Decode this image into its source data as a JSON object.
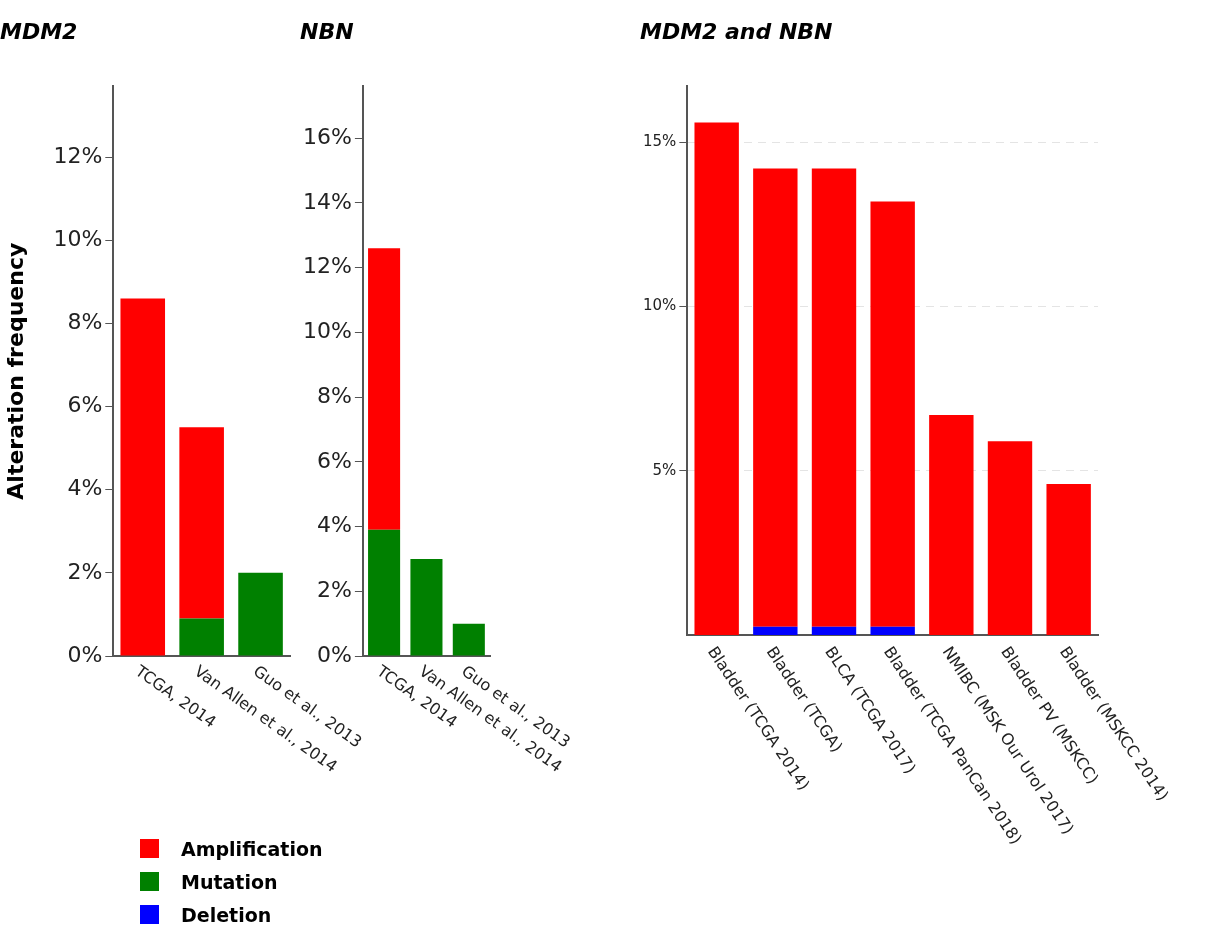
{
  "chart_data": [
    {
      "type": "bar",
      "title": "MDM2",
      "ylabel": "Alteration frequency",
      "categories": [
        "TCGA, 2014",
        "Van Allen et al., 2014",
        "Guo et al., 2013"
      ],
      "stacked": true,
      "grid": false,
      "legend": "bottom",
      "series": [
        {
          "name": "Mutation",
          "color": "#008000",
          "values": [
            null,
            0.9,
            2.0
          ]
        },
        {
          "name": "Amplification",
          "color": "#ff0000",
          "values": [
            8.6,
            4.6,
            null
          ]
        }
      ],
      "ylim": [
        0,
        13.7
      ],
      "yticks": [
        {
          "value": 0,
          "label": "0%"
        },
        {
          "value": 2,
          "label": "2%"
        },
        {
          "value": 4,
          "label": "4%"
        },
        {
          "value": 6,
          "label": "6%"
        },
        {
          "value": 8,
          "label": "8%"
        },
        {
          "value": 10,
          "label": "10%"
        },
        {
          "value": 12,
          "label": "12%"
        }
      ]
    },
    {
      "type": "bar",
      "title": "NBN",
      "categories": [
        "TCGA, 2014",
        "Van Allen et al., 2014",
        "Guo et al., 2013"
      ],
      "stacked": true,
      "grid": false,
      "series": [
        {
          "name": "Mutation",
          "color": "#008000",
          "values": [
            3.9,
            3.0,
            1.0
          ]
        },
        {
          "name": "Amplification",
          "color": "#ff0000",
          "values": [
            8.7,
            null,
            null
          ]
        }
      ],
      "ylim": [
        0,
        17.6
      ],
      "yticks": [
        {
          "value": 0,
          "label": "0%"
        },
        {
          "value": 2,
          "label": "2%"
        },
        {
          "value": 4,
          "label": "4%"
        },
        {
          "value": 6,
          "label": "6%"
        },
        {
          "value": 8,
          "label": "8%"
        },
        {
          "value": 10,
          "label": "10%"
        },
        {
          "value": 12,
          "label": "12%"
        },
        {
          "value": 14,
          "label": "14%"
        },
        {
          "value": 16,
          "label": "16%"
        }
      ]
    },
    {
      "type": "bar",
      "title": "MDM2 and NBN",
      "categories": [
        "Bladder (TCGA 2014)",
        "Bladder (TCGA)",
        "BLCA (TCGA 2017)",
        "Bladder (TCGA PanCan 2018)",
        "NMIBC (MSK Our Urol 2017)",
        "Bladder PV (MSKCC)",
        "Bladder (MSKCC 2014)"
      ],
      "stacked": true,
      "grid": "y",
      "series": [
        {
          "name": "Deletion",
          "color": "#0000ff",
          "values": [
            null,
            0.25,
            0.25,
            0.25,
            null,
            null,
            null
          ]
        },
        {
          "name": "Amplification",
          "color": "#ff0000",
          "values": [
            15.6,
            13.95,
            13.95,
            12.95,
            6.7,
            5.9,
            4.6
          ]
        }
      ],
      "ylim": [
        0,
        16.7
      ],
      "yticks": [
        {
          "value": 5,
          "label": "5%"
        },
        {
          "value": 10,
          "label": "10%"
        },
        {
          "value": 15,
          "label": "15%"
        }
      ]
    }
  ]
}
